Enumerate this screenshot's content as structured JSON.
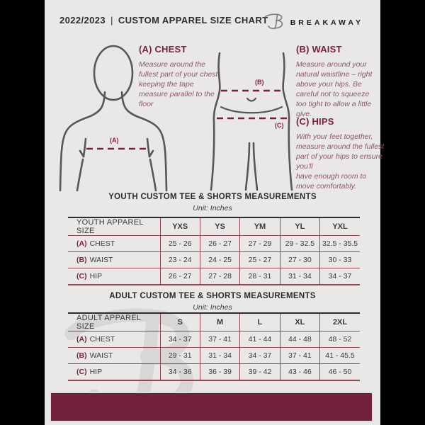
{
  "header": {
    "title_left": "2022/2023",
    "separator": "|",
    "title_right": "CUSTOM APPAREL SIZE CHART",
    "brand": "BREAKAWAY"
  },
  "diagram": {
    "chest": {
      "heading": "(A) CHEST",
      "marker": "(A)",
      "body": "Measure around the fullest part of your chest, keeping the tape measure parallel to the floor"
    },
    "waist": {
      "heading": "(B) WAIST",
      "marker": "(B)",
      "body": "Measure around your natural waistline – right above your hips. Be careful not to squeeze too tight to allow a little give."
    },
    "hips": {
      "heading": "(C) HIPS",
      "marker": "(C)",
      "body": "With your feet together, measure around the fullest part of your hips to ensure you'll\nhave enough room to move comfortably."
    }
  },
  "youth_table": {
    "title": "YOUTH CUSTOM TEE & SHORTS MEASUREMENTS",
    "unit": "Unit: Inches",
    "header": [
      "YOUTH APPAREL SIZE",
      "YXS",
      "YS",
      "YM",
      "YL",
      "YXL"
    ],
    "rows": [
      {
        "key": "(A)",
        "label": "CHEST",
        "values": [
          "25 - 26",
          "26 - 27",
          "27 - 29",
          "29 - 32.5",
          "32.5 - 35.5"
        ]
      },
      {
        "key": "(B)",
        "label": "WAIST",
        "values": [
          "23 - 24",
          "24 - 25",
          "25 - 27",
          "27 - 30",
          "30 - 33"
        ]
      },
      {
        "key": "(C)",
        "label": "HIP",
        "values": [
          "26 - 27",
          "27 - 28",
          "28 - 31",
          "31 - 34",
          "34 - 37"
        ]
      }
    ]
  },
  "adult_table": {
    "title": "ADULT CUSTOM TEE & SHORTS MEASUREMENTS",
    "unit": "Unit: Inches",
    "header": [
      "ADULT APPAREL SIZE",
      "S",
      "M",
      "L",
      "XL",
      "2XL"
    ],
    "rows": [
      {
        "key": "(A)",
        "label": "CHEST",
        "values": [
          "34 - 37",
          "37 - 41",
          "41 - 44",
          "44 - 48",
          "48 - 52"
        ]
      },
      {
        "key": "(B)",
        "label": "WAIST",
        "values": [
          "29 - 31",
          "31 - 34",
          "34 - 37",
          "37 - 41",
          "41 - 45.5"
        ]
      },
      {
        "key": "(C)",
        "label": "HIP",
        "values": [
          "34 - 36",
          "36 - 39",
          "39 - 42",
          "43 - 46",
          "46 - 50"
        ]
      }
    ]
  },
  "colors": {
    "maroon_heading": "#7a1f3e",
    "maroon_footer": "#731f3e",
    "table_line": "#8f4459",
    "note_text": "#8e5468",
    "figure_outline": "#57575a",
    "page_background": "#e9e8e6"
  }
}
